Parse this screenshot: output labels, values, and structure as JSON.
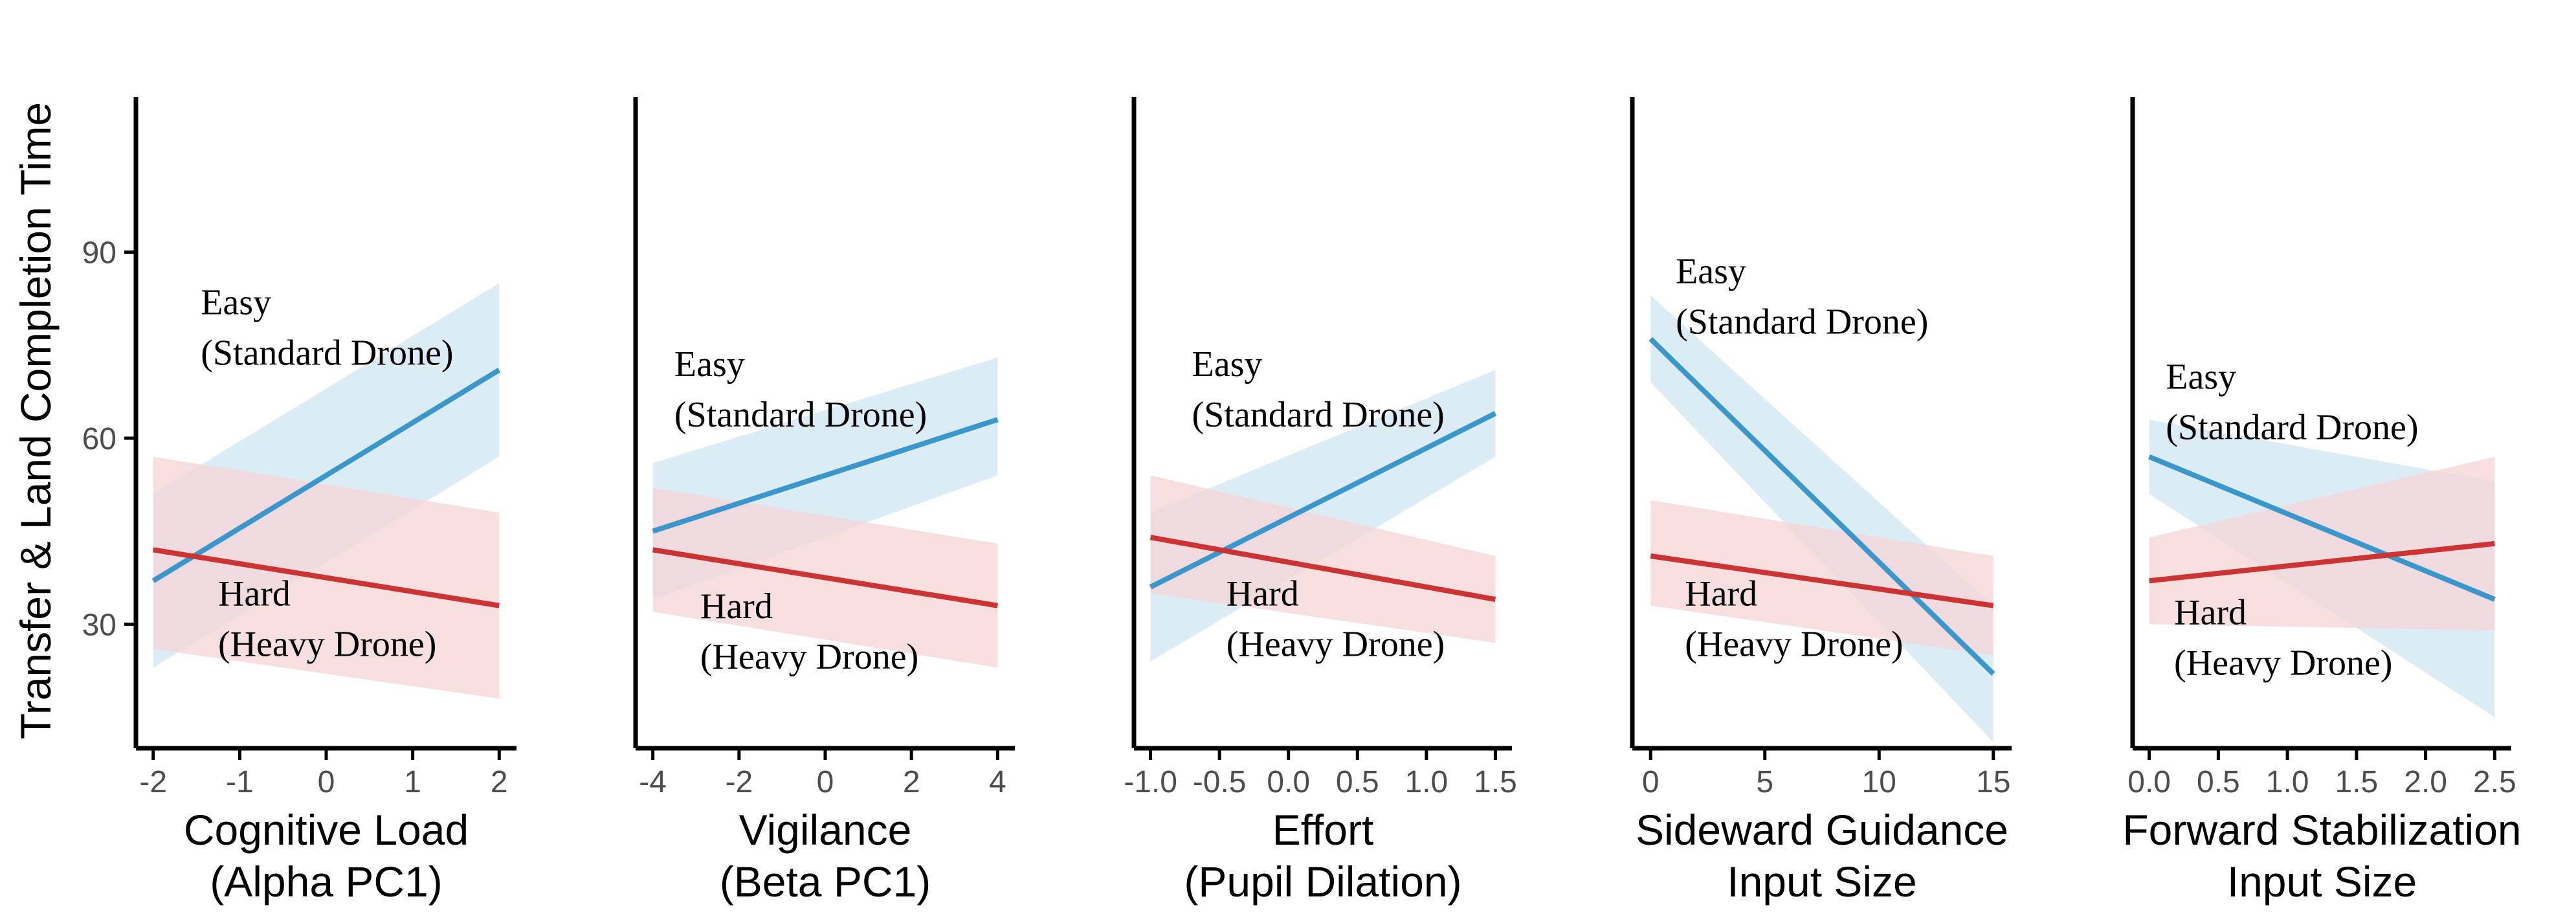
{
  "chart_data": [
    {
      "type": "line",
      "xlabel": [
        "Cognitive Load",
        "(Alpha PC1)"
      ],
      "ylabel": "Transfer & Land Completion Time",
      "xlim": [
        -2.2,
        2.2
      ],
      "ylim": [
        10,
        115
      ],
      "xticks": [
        -2,
        -1,
        0,
        1,
        2
      ],
      "xtick_labels": [
        "-2",
        "-1",
        "0",
        "1",
        "2"
      ],
      "yticks": [
        30,
        60,
        90
      ],
      "ytick_labels": [
        "30",
        "60",
        "90"
      ],
      "series": [
        {
          "name": "Easy (Standard Drone)",
          "color": "#3a97cc",
          "band_color": "#cfe5f2",
          "x": [
            -2,
            2
          ],
          "y": [
            37,
            71
          ],
          "lower": [
            23,
            57
          ],
          "upper": [
            51,
            85
          ]
        },
        {
          "name": "Hard (Heavy Drone)",
          "color": "#cc3333",
          "band_color": "#f6d4d4",
          "x": [
            -2,
            2
          ],
          "y": [
            42,
            33
          ],
          "lower": [
            26,
            18
          ],
          "upper": [
            57,
            48
          ]
        }
      ],
      "annotations": [
        {
          "lines": [
            "Easy",
            "(Standard Drone)"
          ],
          "x": -1.45,
          "y": 80
        },
        {
          "lines": [
            "Hard",
            "(Heavy Drone)"
          ],
          "x": -1.25,
          "y": 33
        }
      ]
    },
    {
      "type": "line",
      "xlabel": [
        "Vigilance",
        "(Beta PC1)"
      ],
      "xlim": [
        -4.4,
        4.4
      ],
      "ylim": [
        10,
        115
      ],
      "xticks": [
        -4,
        -2,
        0,
        2,
        4
      ],
      "xtick_labels": [
        "-4",
        "-2",
        "0",
        "2",
        "4"
      ],
      "yticks": [],
      "ytick_labels": [],
      "series": [
        {
          "name": "Easy (Standard Drone)",
          "color": "#3a97cc",
          "band_color": "#cfe5f2",
          "x": [
            -4,
            4
          ],
          "y": [
            45,
            63
          ],
          "lower": [
            34,
            54
          ],
          "upper": [
            56,
            73
          ]
        },
        {
          "name": "Hard (Heavy Drone)",
          "color": "#cc3333",
          "band_color": "#f6d4d4",
          "x": [
            -4,
            4
          ],
          "y": [
            42,
            33
          ],
          "lower": [
            32,
            23
          ],
          "upper": [
            52,
            43
          ]
        }
      ],
      "annotations": [
        {
          "lines": [
            "Easy",
            "(Standard Drone)"
          ],
          "x": -3.5,
          "y": 70
        },
        {
          "lines": [
            "Hard",
            "(Heavy Drone)"
          ],
          "x": -2.9,
          "y": 31
        }
      ]
    },
    {
      "type": "line",
      "xlabel": [
        "Effort",
        "(Pupil Dilation)"
      ],
      "xlim": [
        -1.12,
        1.62
      ],
      "ylim": [
        10,
        115
      ],
      "xticks": [
        -1.0,
        -0.5,
        0.0,
        0.5,
        1.0,
        1.5
      ],
      "xtick_labels": [
        "-1.0",
        "-0.5",
        "0.0",
        "0.5",
        "1.0",
        "1.5"
      ],
      "yticks": [],
      "ytick_labels": [],
      "series": [
        {
          "name": "Easy (Standard Drone)",
          "color": "#3a97cc",
          "band_color": "#cfe5f2",
          "x": [
            -1.0,
            1.5
          ],
          "y": [
            36,
            64
          ],
          "lower": [
            24,
            57
          ],
          "upper": [
            48,
            71
          ]
        },
        {
          "name": "Hard (Heavy Drone)",
          "color": "#cc3333",
          "band_color": "#f6d4d4",
          "x": [
            -1.0,
            1.5
          ],
          "y": [
            44,
            34
          ],
          "lower": [
            35,
            27
          ],
          "upper": [
            54,
            41
          ]
        }
      ],
      "annotations": [
        {
          "lines": [
            "Easy",
            "(Standard Drone)"
          ],
          "x": -0.7,
          "y": 70
        },
        {
          "lines": [
            "Hard",
            "(Heavy Drone)"
          ],
          "x": -0.45,
          "y": 33
        }
      ]
    },
    {
      "type": "line",
      "xlabel": [
        "Sideward Guidance",
        "Input Size"
      ],
      "xlim": [
        -0.8,
        15.8
      ],
      "ylim": [
        10,
        115
      ],
      "xticks": [
        0,
        5,
        10,
        15
      ],
      "xtick_labels": [
        "0",
        "5",
        "10",
        "15"
      ],
      "yticks": [],
      "ytick_labels": [],
      "series": [
        {
          "name": "Easy (Standard Drone)",
          "color": "#3a97cc",
          "band_color": "#cfe5f2",
          "x": [
            0,
            15
          ],
          "y": [
            76,
            22
          ],
          "lower": [
            69,
            11
          ],
          "upper": [
            83,
            33
          ]
        },
        {
          "name": "Hard (Heavy Drone)",
          "color": "#cc3333",
          "band_color": "#f6d4d4",
          "x": [
            0,
            15
          ],
          "y": [
            41,
            33
          ],
          "lower": [
            33,
            25
          ],
          "upper": [
            50,
            41
          ]
        }
      ],
      "annotations": [
        {
          "lines": [
            "Easy",
            "(Standard Drone)"
          ],
          "x": 1.1,
          "y": 85
        },
        {
          "lines": [
            "Hard",
            "(Heavy Drone)"
          ],
          "x": 1.5,
          "y": 33
        }
      ]
    },
    {
      "type": "line",
      "xlabel": [
        "Forward Stabilization",
        "Input Size"
      ],
      "xlim": [
        -0.12,
        2.62
      ],
      "ylim": [
        10,
        115
      ],
      "xticks": [
        0.0,
        0.5,
        1.0,
        1.5,
        2.0,
        2.5
      ],
      "xtick_labels": [
        "0.0",
        "0.5",
        "1.0",
        "1.5",
        "2.0",
        "2.5"
      ],
      "yticks": [],
      "ytick_labels": [],
      "series": [
        {
          "name": "Easy (Standard Drone)",
          "color": "#3a97cc",
          "band_color": "#cfe5f2",
          "x": [
            0,
            2.5
          ],
          "y": [
            57,
            34
          ],
          "lower": [
            51,
            15
          ],
          "upper": [
            63,
            53
          ]
        },
        {
          "name": "Hard (Heavy Drone)",
          "color": "#cc3333",
          "band_color": "#f6d4d4",
          "x": [
            0,
            2.5
          ],
          "y": [
            37,
            43
          ],
          "lower": [
            30,
            29
          ],
          "upper": [
            44,
            57
          ]
        }
      ],
      "annotations": [
        {
          "lines": [
            "Easy",
            "(Standard Drone)"
          ],
          "x": 0.12,
          "y": 68
        },
        {
          "lines": [
            "Hard",
            "(Heavy Drone)"
          ],
          "x": 0.18,
          "y": 30
        }
      ]
    }
  ]
}
